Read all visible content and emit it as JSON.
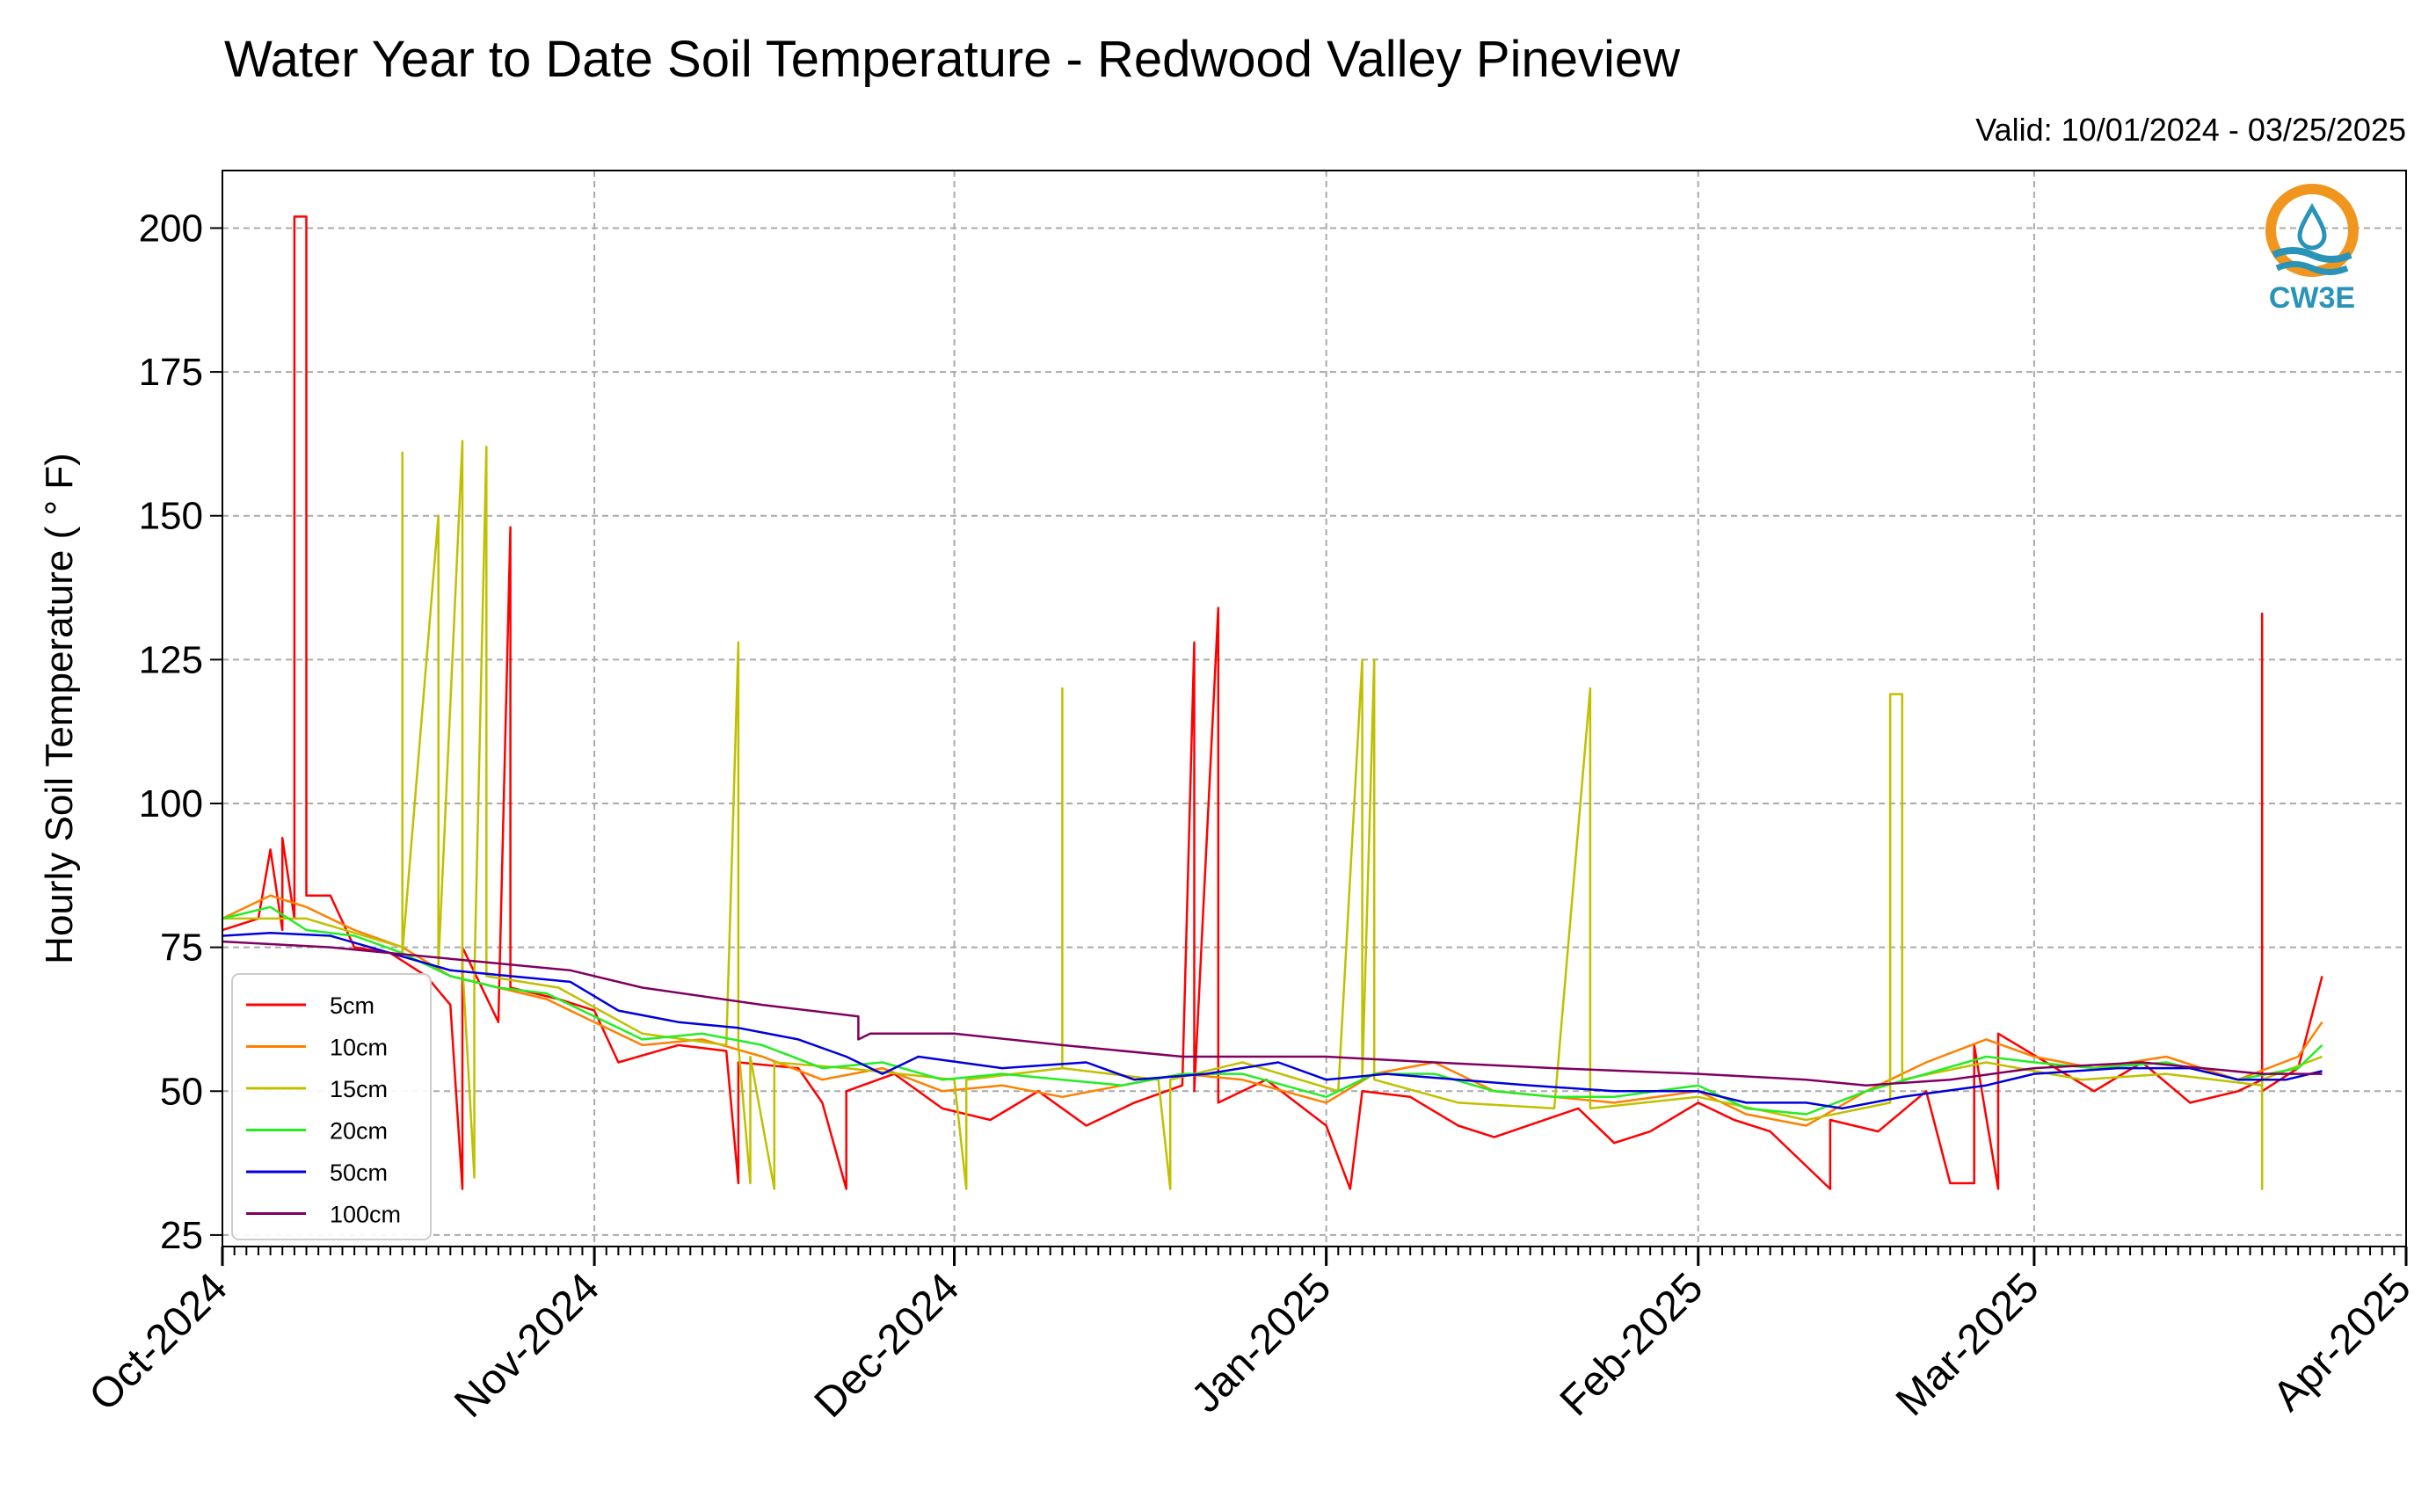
{
  "chart_data": {
    "type": "line",
    "title": "Water Year to Date Soil Temperature - Redwood Valley Pineview",
    "subtitle": "Valid: 10/01/2024 - 03/25/2025",
    "ylabel": "Hourly Soil Temperature ( ° F)",
    "xlabel": "",
    "xlim": [
      "2024-10-01",
      "2025-04-01"
    ],
    "ylim": [
      23,
      210
    ],
    "yticks": [
      25,
      50,
      75,
      100,
      125,
      150,
      175,
      200
    ],
    "xticks": [
      {
        "date": "2024-10-01",
        "label": "Oct-2024"
      },
      {
        "date": "2024-11-01",
        "label": "Nov-2024"
      },
      {
        "date": "2024-12-01",
        "label": "Dec-2024"
      },
      {
        "date": "2025-01-01",
        "label": "Jan-2025"
      },
      {
        "date": "2025-02-01",
        "label": "Feb-2025"
      },
      {
        "date": "2025-03-01",
        "label": "Mar-2025"
      },
      {
        "date": "2025-04-01",
        "label": "Apr-2025"
      }
    ],
    "grid": true,
    "legend_position": "lower-left",
    "series": [
      {
        "name": "5cm",
        "color": "#ff0000",
        "values": [
          [
            "2024-10-01",
            78
          ],
          [
            "2024-10-04",
            80
          ],
          [
            "2024-10-05",
            92
          ],
          [
            "2024-10-06",
            78
          ],
          [
            "2024-10-06",
            94
          ],
          [
            "2024-10-07",
            80
          ],
          [
            "2024-10-07",
            202
          ],
          [
            "2024-10-08",
            202
          ],
          [
            "2024-10-08",
            84
          ],
          [
            "2024-10-10",
            84
          ],
          [
            "2024-10-12",
            75
          ],
          [
            "2024-10-15",
            74
          ],
          [
            "2024-10-18",
            70
          ],
          [
            "2024-10-20",
            65
          ],
          [
            "2024-10-21",
            33
          ],
          [
            "2024-10-21",
            75
          ],
          [
            "2024-10-24",
            62
          ],
          [
            "2024-10-25",
            148
          ],
          [
            "2024-10-25",
            68
          ],
          [
            "2024-10-29",
            66
          ],
          [
            "2024-11-01",
            64
          ],
          [
            "2024-11-03",
            55
          ],
          [
            "2024-11-08",
            58
          ],
          [
            "2024-11-12",
            57
          ],
          [
            "2024-11-13",
            34
          ],
          [
            "2024-11-13",
            55
          ],
          [
            "2024-11-18",
            54
          ],
          [
            "2024-11-20",
            48
          ],
          [
            "2024-11-22",
            33
          ],
          [
            "2024-11-22",
            50
          ],
          [
            "2024-11-26",
            53
          ],
          [
            "2024-11-30",
            47
          ],
          [
            "2024-12-04",
            45
          ],
          [
            "2024-12-08",
            50
          ],
          [
            "2024-12-12",
            44
          ],
          [
            "2024-12-16",
            48
          ],
          [
            "2024-12-20",
            51
          ],
          [
            "2024-12-21",
            128
          ],
          [
            "2024-12-21",
            50
          ],
          [
            "2024-12-23",
            134
          ],
          [
            "2024-12-23",
            48
          ],
          [
            "2024-12-27",
            52
          ],
          [
            "2025-01-01",
            44
          ],
          [
            "2025-01-03",
            33
          ],
          [
            "2025-01-04",
            50
          ],
          [
            "2025-01-08",
            49
          ],
          [
            "2025-01-12",
            44
          ],
          [
            "2025-01-15",
            42
          ],
          [
            "2025-01-22",
            47
          ],
          [
            "2025-01-25",
            41
          ],
          [
            "2025-01-28",
            43
          ],
          [
            "2025-02-01",
            48
          ],
          [
            "2025-02-04",
            45
          ],
          [
            "2025-02-07",
            43
          ],
          [
            "2025-02-12",
            33
          ],
          [
            "2025-02-12",
            45
          ],
          [
            "2025-02-16",
            43
          ],
          [
            "2025-02-20",
            50
          ],
          [
            "2025-02-22",
            34
          ],
          [
            "2025-02-24",
            34
          ],
          [
            "2025-02-24",
            58
          ],
          [
            "2025-02-26",
            33
          ],
          [
            "2025-02-26",
            60
          ],
          [
            "2025-03-02",
            55
          ],
          [
            "2025-03-06",
            50
          ],
          [
            "2025-03-10",
            55
          ],
          [
            "2025-03-14",
            48
          ],
          [
            "2025-03-18",
            50
          ],
          [
            "2025-03-20",
            52
          ],
          [
            "2025-03-20",
            133
          ],
          [
            "2025-03-20",
            50
          ],
          [
            "2025-03-23",
            54
          ],
          [
            "2025-03-25",
            70
          ]
        ]
      },
      {
        "name": "10cm",
        "color": "#ff8000",
        "values": [
          [
            "2024-10-01",
            80
          ],
          [
            "2024-10-05",
            84
          ],
          [
            "2024-10-08",
            82
          ],
          [
            "2024-10-12",
            78
          ],
          [
            "2024-10-16",
            75
          ],
          [
            "2024-10-20",
            70
          ],
          [
            "2024-10-24",
            68
          ],
          [
            "2024-10-28",
            66
          ],
          [
            "2024-11-01",
            62
          ],
          [
            "2024-11-05",
            58
          ],
          [
            "2024-11-10",
            59
          ],
          [
            "2024-11-15",
            56
          ],
          [
            "2024-11-20",
            52
          ],
          [
            "2024-11-25",
            54
          ],
          [
            "2024-11-30",
            50
          ],
          [
            "2024-12-05",
            51
          ],
          [
            "2024-12-10",
            49
          ],
          [
            "2024-12-15",
            51
          ],
          [
            "2024-12-20",
            53
          ],
          [
            "2024-12-25",
            52
          ],
          [
            "2025-01-01",
            48
          ],
          [
            "2025-01-05",
            53
          ],
          [
            "2025-01-10",
            55
          ],
          [
            "2025-01-15",
            50
          ],
          [
            "2025-01-20",
            49
          ],
          [
            "2025-01-25",
            48
          ],
          [
            "2025-02-01",
            50
          ],
          [
            "2025-02-05",
            46
          ],
          [
            "2025-02-10",
            44
          ],
          [
            "2025-02-15",
            50
          ],
          [
            "2025-02-20",
            55
          ],
          [
            "2025-02-25",
            59
          ],
          [
            "2025-03-01",
            56
          ],
          [
            "2025-03-06",
            54
          ],
          [
            "2025-03-12",
            56
          ],
          [
            "2025-03-18",
            52
          ],
          [
            "2025-03-23",
            56
          ],
          [
            "2025-03-25",
            62
          ]
        ]
      },
      {
        "name": "15cm",
        "color": "#c0c000",
        "values": [
          [
            "2024-10-01",
            80
          ],
          [
            "2024-10-08",
            80
          ],
          [
            "2024-10-16",
            75
          ],
          [
            "2024-10-16",
            161
          ],
          [
            "2024-10-16",
            74
          ],
          [
            "2024-10-19",
            150
          ],
          [
            "2024-10-19",
            72
          ],
          [
            "2024-10-21",
            163
          ],
          [
            "2024-10-21",
            72
          ],
          [
            "2024-10-22",
            35
          ],
          [
            "2024-10-22",
            70
          ],
          [
            "2024-10-23",
            162
          ],
          [
            "2024-10-23",
            70
          ],
          [
            "2024-10-29",
            68
          ],
          [
            "2024-11-05",
            60
          ],
          [
            "2024-11-12",
            58
          ],
          [
            "2024-11-13",
            128
          ],
          [
            "2024-11-13",
            58
          ],
          [
            "2024-11-14",
            34
          ],
          [
            "2024-11-14",
            56
          ],
          [
            "2024-11-16",
            33
          ],
          [
            "2024-11-16",
            55
          ],
          [
            "2024-11-22",
            54
          ],
          [
            "2024-12-01",
            52
          ],
          [
            "2024-12-02",
            33
          ],
          [
            "2024-12-02",
            52
          ],
          [
            "2024-12-10",
            54
          ],
          [
            "2024-12-10",
            120
          ],
          [
            "2024-12-10",
            54
          ],
          [
            "2024-12-18",
            52
          ],
          [
            "2024-12-19",
            33
          ],
          [
            "2024-12-19",
            52
          ],
          [
            "2024-12-25",
            55
          ],
          [
            "2025-01-02",
            50
          ],
          [
            "2025-01-04",
            125
          ],
          [
            "2025-01-04",
            52
          ],
          [
            "2025-01-05",
            125
          ],
          [
            "2025-01-05",
            52
          ],
          [
            "2025-01-12",
            48
          ],
          [
            "2025-01-20",
            47
          ],
          [
            "2025-01-23",
            120
          ],
          [
            "2025-01-23",
            47
          ],
          [
            "2025-02-01",
            49
          ],
          [
            "2025-02-10",
            45
          ],
          [
            "2025-02-17",
            48
          ],
          [
            "2025-02-17",
            119
          ],
          [
            "2025-02-18",
            119
          ],
          [
            "2025-02-18",
            52
          ],
          [
            "2025-02-25",
            55
          ],
          [
            "2025-03-05",
            52
          ],
          [
            "2025-03-12",
            53
          ],
          [
            "2025-03-20",
            51
          ],
          [
            "2025-03-20",
            33
          ],
          [
            "2025-03-20",
            52
          ],
          [
            "2025-03-25",
            56
          ]
        ]
      },
      {
        "name": "20cm",
        "color": "#22ee22",
        "values": [
          [
            "2024-10-01",
            80
          ],
          [
            "2024-10-05",
            82
          ],
          [
            "2024-10-08",
            78
          ],
          [
            "2024-10-12",
            77
          ],
          [
            "2024-10-16",
            74
          ],
          [
            "2024-10-20",
            70
          ],
          [
            "2024-10-24",
            68
          ],
          [
            "2024-10-28",
            67
          ],
          [
            "2024-11-01",
            63
          ],
          [
            "2024-11-05",
            59
          ],
          [
            "2024-11-10",
            60
          ],
          [
            "2024-11-15",
            58
          ],
          [
            "2024-11-20",
            54
          ],
          [
            "2024-11-25",
            55
          ],
          [
            "2024-11-30",
            52
          ],
          [
            "2024-12-05",
            53
          ],
          [
            "2024-12-10",
            52
          ],
          [
            "2024-12-15",
            51
          ],
          [
            "2024-12-20",
            53
          ],
          [
            "2024-12-25",
            53
          ],
          [
            "2025-01-01",
            49
          ],
          [
            "2025-01-05",
            53
          ],
          [
            "2025-01-10",
            53
          ],
          [
            "2025-01-15",
            50
          ],
          [
            "2025-01-20",
            49
          ],
          [
            "2025-01-25",
            49
          ],
          [
            "2025-02-01",
            51
          ],
          [
            "2025-02-05",
            47
          ],
          [
            "2025-02-10",
            46
          ],
          [
            "2025-02-15",
            50
          ],
          [
            "2025-02-20",
            53
          ],
          [
            "2025-02-25",
            56
          ],
          [
            "2025-03-01",
            55
          ],
          [
            "2025-03-06",
            54
          ],
          [
            "2025-03-12",
            55
          ],
          [
            "2025-03-18",
            52
          ],
          [
            "2025-03-23",
            54
          ],
          [
            "2025-03-25",
            58
          ]
        ]
      },
      {
        "name": "50cm",
        "color": "#0000dd",
        "values": [
          [
            "2024-10-01",
            77
          ],
          [
            "2024-10-05",
            77.5
          ],
          [
            "2024-10-10",
            77
          ],
          [
            "2024-10-15",
            74
          ],
          [
            "2024-10-20",
            71
          ],
          [
            "2024-10-25",
            70
          ],
          [
            "2024-10-30",
            69
          ],
          [
            "2024-11-03",
            64
          ],
          [
            "2024-11-08",
            62
          ],
          [
            "2024-11-13",
            61
          ],
          [
            "2024-11-18",
            59
          ],
          [
            "2024-11-22",
            56
          ],
          [
            "2024-11-25",
            53
          ],
          [
            "2024-11-28",
            56
          ],
          [
            "2024-12-05",
            54
          ],
          [
            "2024-12-12",
            55
          ],
          [
            "2024-12-16",
            52
          ],
          [
            "2024-12-22",
            53
          ],
          [
            "2024-12-28",
            55
          ],
          [
            "2025-01-01",
            52
          ],
          [
            "2025-01-06",
            53
          ],
          [
            "2025-01-12",
            52
          ],
          [
            "2025-01-18",
            51
          ],
          [
            "2025-01-25",
            50
          ],
          [
            "2025-02-01",
            50
          ],
          [
            "2025-02-05",
            48
          ],
          [
            "2025-02-10",
            48
          ],
          [
            "2025-02-13",
            47
          ],
          [
            "2025-02-18",
            49
          ],
          [
            "2025-02-25",
            51
          ],
          [
            "2025-03-01",
            53
          ],
          [
            "2025-03-08",
            54
          ],
          [
            "2025-03-14",
            54
          ],
          [
            "2025-03-18",
            52
          ],
          [
            "2025-03-22",
            52
          ],
          [
            "2025-03-25",
            53.5
          ]
        ]
      },
      {
        "name": "100cm",
        "color": "#800060",
        "values": [
          [
            "2024-10-01",
            76
          ],
          [
            "2024-10-10",
            75
          ],
          [
            "2024-10-20",
            73
          ],
          [
            "2024-10-30",
            71
          ],
          [
            "2024-11-05",
            68
          ],
          [
            "2024-11-15",
            65
          ],
          [
            "2024-11-23",
            63
          ],
          [
            "2024-11-23",
            59
          ],
          [
            "2024-11-24",
            60
          ],
          [
            "2024-12-01",
            60
          ],
          [
            "2024-12-10",
            58
          ],
          [
            "2024-12-20",
            56
          ],
          [
            "2025-01-01",
            56
          ],
          [
            "2025-01-10",
            55
          ],
          [
            "2025-01-20",
            54
          ],
          [
            "2025-02-01",
            53
          ],
          [
            "2025-02-10",
            52
          ],
          [
            "2025-02-15",
            51
          ],
          [
            "2025-02-22",
            52
          ],
          [
            "2025-03-01",
            54
          ],
          [
            "2025-03-10",
            55
          ],
          [
            "2025-03-15",
            54
          ],
          [
            "2025-03-20",
            53
          ],
          [
            "2025-03-25",
            53
          ]
        ]
      }
    ]
  },
  "logo": {
    "text": "CW3E",
    "ring_color": "#f0961e",
    "wave_color": "#2a93b8"
  }
}
